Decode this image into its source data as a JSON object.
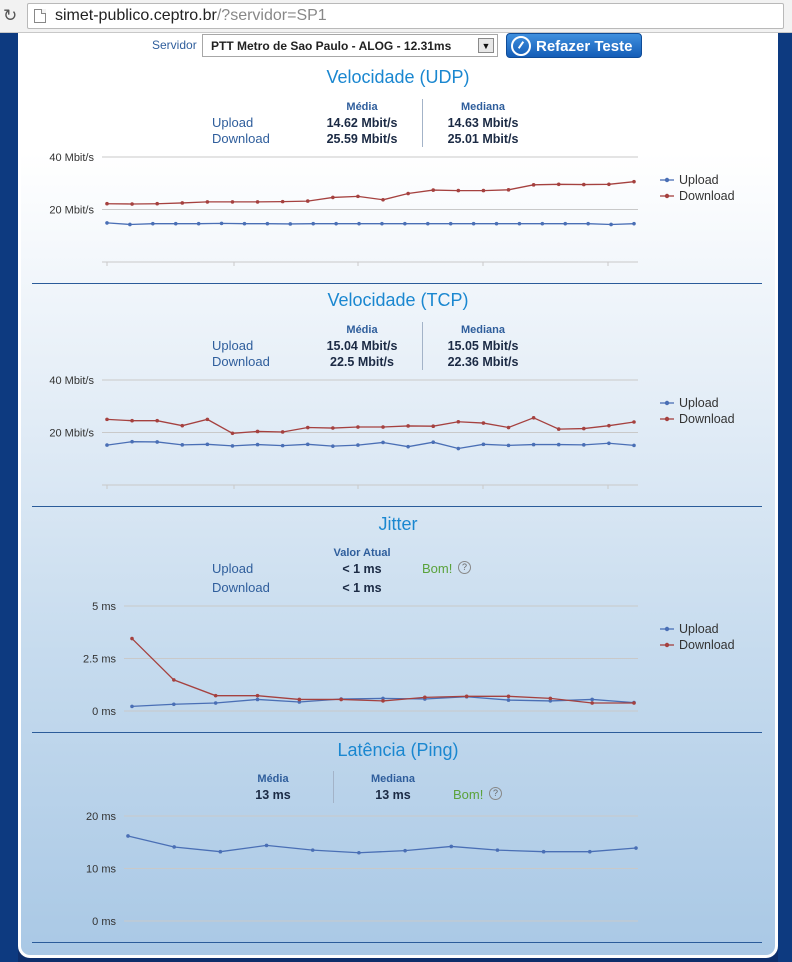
{
  "browser": {
    "url_host": "simet-publico.ceptro.br",
    "url_path": "/?servidor=SP1"
  },
  "server": {
    "label": "Servidor",
    "selected": "PTT Metro de Sao Paulo - ALOG - 12.31ms",
    "redo_button": "Refazer Teste"
  },
  "colors": {
    "upload": "#4a6fb5",
    "download": "#a5413f",
    "title": "#1a87d0",
    "good": "#5aa23b"
  },
  "legend": {
    "upload": "Upload",
    "download": "Download"
  },
  "udp": {
    "title": "Velocidade (UDP)",
    "col_media": "Média",
    "col_mediana": "Mediana",
    "upload_label": "Upload",
    "download_label": "Download",
    "upload_media": "14.62 Mbit/s",
    "upload_mediana": "14.63 Mbit/s",
    "download_media": "25.59 Mbit/s",
    "download_mediana": "25.01 Mbit/s"
  },
  "tcp": {
    "title": "Velocidade (TCP)",
    "col_media": "Média",
    "col_mediana": "Mediana",
    "upload_label": "Upload",
    "download_label": "Download",
    "upload_media": "15.04 Mbit/s",
    "upload_mediana": "15.05 Mbit/s",
    "download_media": "22.5 Mbit/s",
    "download_mediana": "22.36 Mbit/s"
  },
  "jitter": {
    "title": "Jitter",
    "col_atual": "Valor Atual",
    "upload_label": "Upload",
    "download_label": "Download",
    "upload_value": "< 1 ms",
    "download_value": "< 1 ms",
    "rating": "Bom!"
  },
  "latency": {
    "title": "Latência (Ping)",
    "col_media": "Média",
    "col_mediana": "Mediana",
    "media": "13 ms",
    "mediana": "13 ms",
    "rating": "Bom!"
  },
  "chart_data": [
    {
      "type": "line",
      "id": "udp",
      "ylim": [
        0,
        40
      ],
      "yticks": [
        20,
        40
      ],
      "ytick_labels": [
        "20 Mbit/s",
        "40 Mbit/s"
      ],
      "series": [
        {
          "name": "Upload",
          "values": [
            14.9,
            14.3,
            14.6,
            14.6,
            14.6,
            14.7,
            14.6,
            14.6,
            14.5,
            14.6,
            14.6,
            14.6,
            14.6,
            14.6,
            14.6,
            14.6,
            14.6,
            14.6,
            14.6,
            14.6,
            14.6,
            14.6,
            14.3,
            14.6
          ]
        },
        {
          "name": "Download",
          "values": [
            22.2,
            22.1,
            22.2,
            22.5,
            22.9,
            22.9,
            22.9,
            23.0,
            23.2,
            24.6,
            25.0,
            23.7,
            26.1,
            27.4,
            27.2,
            27.2,
            27.5,
            29.4,
            29.6,
            29.5,
            29.6,
            30.6
          ]
        }
      ]
    },
    {
      "type": "line",
      "id": "tcp",
      "ylim": [
        0,
        40
      ],
      "yticks": [
        20,
        40
      ],
      "ytick_labels": [
        "20 Mbit/s",
        "40 Mbit/s"
      ],
      "series": [
        {
          "name": "Upload",
          "values": [
            15.2,
            16.5,
            16.4,
            15.3,
            15.5,
            14.9,
            15.4,
            15.0,
            15.5,
            14.8,
            15.2,
            16.2,
            14.6,
            16.3,
            13.9,
            15.5,
            15.1,
            15.4,
            15.4,
            15.3,
            15.9,
            15.1
          ]
        },
        {
          "name": "Download",
          "values": [
            25.0,
            24.5,
            24.5,
            22.6,
            25.0,
            19.7,
            20.4,
            20.2,
            21.9,
            21.7,
            22.1,
            22.1,
            22.5,
            22.4,
            24.1,
            23.6,
            21.9,
            25.6,
            21.3,
            21.5,
            22.6,
            24.0
          ]
        }
      ]
    },
    {
      "type": "line",
      "id": "jitter",
      "ylim": [
        0,
        5
      ],
      "yticks": [
        0,
        2.5,
        5
      ],
      "ytick_labels": [
        "0 ms",
        "2.5 ms",
        "5 ms"
      ],
      "series": [
        {
          "name": "Upload",
          "values": [
            0.22,
            0.32,
            0.38,
            0.55,
            0.43,
            0.57,
            0.6,
            0.57,
            0.68,
            0.52,
            0.48,
            0.55,
            0.4
          ]
        },
        {
          "name": "Download",
          "values": [
            3.45,
            1.48,
            0.73,
            0.73,
            0.55,
            0.55,
            0.48,
            0.65,
            0.7,
            0.7,
            0.6,
            0.38,
            0.38
          ]
        }
      ]
    },
    {
      "type": "line",
      "id": "latency",
      "ylim": [
        0,
        20
      ],
      "yticks": [
        0,
        10,
        20
      ],
      "ytick_labels": [
        "0 ms",
        "10 ms",
        "20 ms"
      ],
      "series": [
        {
          "name": "Upload",
          "values": [
            16.2,
            14.1,
            13.2,
            14.4,
            13.5,
            13.0,
            13.4,
            14.2,
            13.5,
            13.2,
            13.2,
            13.9
          ]
        }
      ]
    }
  ]
}
